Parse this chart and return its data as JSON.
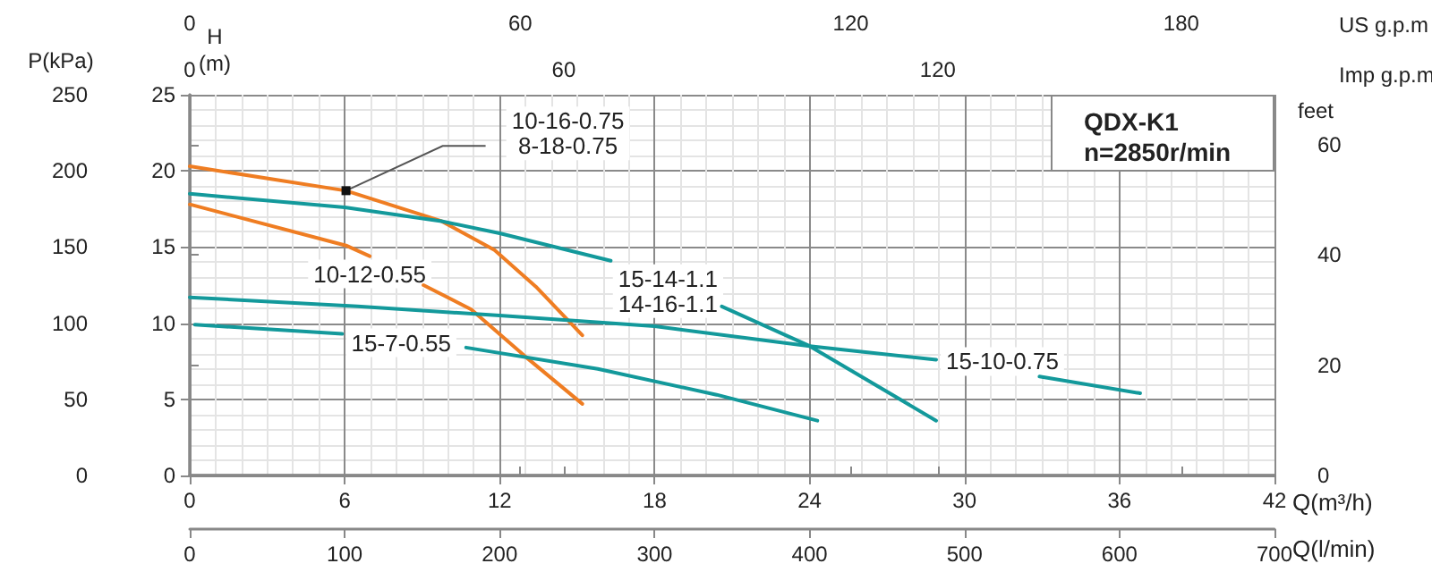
{
  "chart_data": {
    "type": "line",
    "xlabel": "Q(m³/h)",
    "xlim": [
      0,
      42
    ],
    "xticks": [
      0,
      6,
      12,
      18,
      24,
      30,
      36,
      42
    ],
    "x2label": "Imp g.p.m",
    "x2lim": [
      0,
      174
    ],
    "x2ticks": [
      0,
      60,
      120
    ],
    "ylabel": "H\n(m)",
    "ylim": [
      0,
      25
    ],
    "yticks": [
      0,
      5,
      10,
      15,
      20,
      25
    ],
    "y2label": "P(kPa)",
    "y2lim": [
      0,
      250
    ],
    "y2ticks": [
      0,
      50,
      100,
      150,
      200,
      250
    ],
    "y3label": "feet",
    "y3lim": [
      0,
      69
    ],
    "y3ticks": [
      0,
      20,
      40,
      60
    ],
    "grid": true,
    "marker": "none",
    "line_style": "solid",
    "series": [
      {
        "color": "#ef7d22",
        "x": [
          0,
          6.05,
          9.75,
          11.8,
          13.4,
          15.2
        ],
        "values": [
          20.3,
          18.7,
          16.7,
          14.8,
          12.4,
          9.2
        ]
      },
      {
        "color": "#ef7d22",
        "x": [
          0,
          6.05,
          6.97,
          8,
          9.05,
          10.9,
          13,
          15.2
        ],
        "values": [
          17.8,
          15.1,
          14.4,
          null,
          12.5,
          10.9,
          7.8,
          4.7
        ]
      },
      {
        "color": "#13999b",
        "x": [
          0,
          6,
          9.75,
          12,
          16.3,
          18.5,
          20.6,
          24,
          28.9
        ],
        "values": [
          18.5,
          17.6,
          16.7,
          15.9,
          14.1,
          null,
          11.1,
          8.5,
          3.6
        ]
      },
      {
        "color": "#13999b",
        "x": [
          0,
          6.5,
          12,
          18,
          24,
          28.9,
          31,
          32.9,
          36.8
        ],
        "values": [
          11.7,
          11.1,
          10.5,
          9.8,
          8.5,
          7.6,
          null,
          6.5,
          5.4
        ]
      },
      {
        "color": "#13999b",
        "x": [
          0.2,
          5.9,
          8,
          10.7,
          15.8,
          20.4,
          24.3
        ],
        "values": [
          9.9,
          9.3,
          null,
          8.4,
          7,
          5.3,
          3.6
        ]
      }
    ],
    "annotations": [
      {
        "text": "10-16-0.75\n8-18-0.75",
        "x": 6.05,
        "y": 18.7
      },
      {
        "text": "15-14-1.1\n14-16-1.1",
        "x": 16.3,
        "y": 14.1
      },
      {
        "text": "10-12-0.55",
        "x": 6.97,
        "y": 14.4
      },
      {
        "text": "15-7-0.55",
        "x": 5.9,
        "y": 9.3
      },
      {
        "text": "15-10-0.75",
        "x": 28.9,
        "y": 7.6
      },
      "QDX-K1\nn=2850r/min",
      "US g.p.m",
      "0",
      "60",
      "120",
      "180",
      "Q(l/min)",
      "0",
      "100",
      "200",
      "300",
      "400",
      "500",
      "600",
      "700"
    ]
  }
}
